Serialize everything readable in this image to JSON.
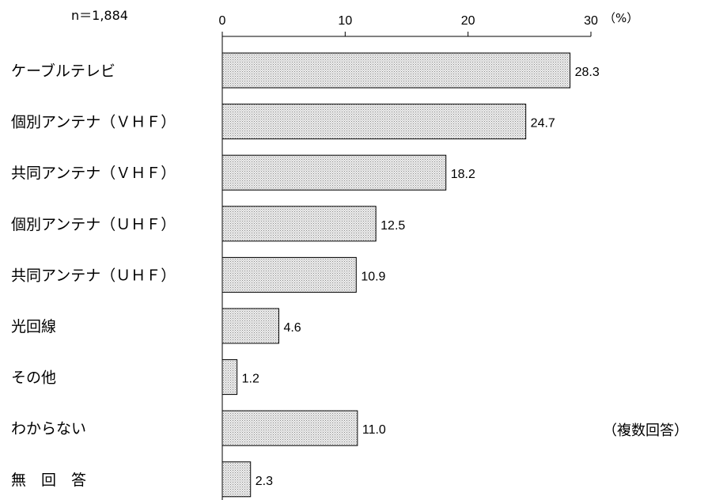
{
  "chart_data": {
    "type": "bar",
    "orientation": "horizontal",
    "sample_size": "n＝1,884",
    "unit": "（%）",
    "note": "（複数回答）",
    "xlim": [
      0,
      30
    ],
    "ticks": [
      0,
      10,
      20,
      30
    ],
    "categories": [
      "ケーブルテレビ",
      "個別アンテナ（ＶＨＦ）",
      "共同アンテナ（ＶＨＦ）",
      "個別アンテナ（ＵＨＦ）",
      "共同アンテナ（ＵＨＦ）",
      "光回線",
      "その他",
      "わからない",
      "無　回　答"
    ],
    "values": [
      28.3,
      24.7,
      18.2,
      12.5,
      10.9,
      4.6,
      1.2,
      11.0,
      2.3
    ],
    "value_labels": [
      "28.3",
      "24.7",
      "18.2",
      "12.5",
      "10.9",
      "4.6",
      "1.2",
      "11.0",
      "2.3"
    ],
    "bar_fill": "#d8d8d8",
    "bar_stroke": "#000000"
  }
}
